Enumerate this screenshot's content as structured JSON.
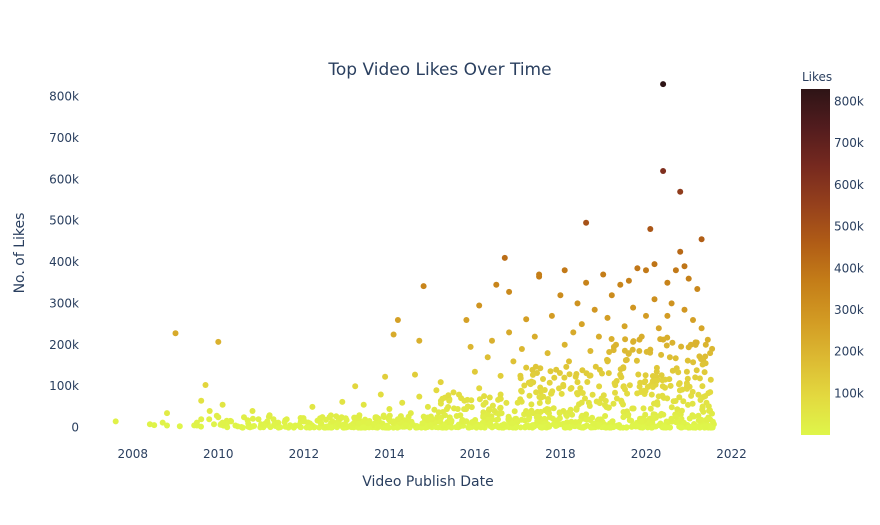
{
  "chart_data": {
    "type": "scatter",
    "title": "Top Video Likes Over Time",
    "xlabel": "Video Publish Date",
    "ylabel": "No. of Likes",
    "xlim": [
      2007.0,
      2022.9
    ],
    "ylim": [
      -30000,
      840000
    ],
    "x_ticks": [
      2008,
      2010,
      2012,
      2014,
      2016,
      2018,
      2020,
      2022
    ],
    "x_tick_labels": [
      "2008",
      "2010",
      "2012",
      "2014",
      "2016",
      "2018",
      "2020",
      "2022"
    ],
    "y_ticks": [
      0,
      100000,
      200000,
      300000,
      400000,
      500000,
      600000,
      700000,
      800000
    ],
    "y_tick_labels": [
      "0",
      "100k",
      "200k",
      "300k",
      "400k",
      "500k",
      "600k",
      "700k",
      "800k"
    ],
    "grid": false,
    "colorbar": {
      "title": "Likes",
      "min": 0,
      "max": 830000,
      "ticks": [
        100000,
        200000,
        300000,
        400000,
        500000,
        600000,
        700000,
        800000
      ],
      "tick_labels": [
        "100k",
        "200k",
        "300k",
        "400k",
        "500k",
        "600k",
        "700k",
        "800k"
      ],
      "colors": [
        "#dff64a",
        "#e3d93f",
        "#dcb932",
        "#d29a23",
        "#c47d18",
        "#b05c16",
        "#95401c",
        "#76291f",
        "#521c1e",
        "#2e1416"
      ]
    },
    "points": [
      [
        2007.6,
        15000
      ],
      [
        2008.4,
        8000
      ],
      [
        2008.5,
        6000
      ],
      [
        2008.7,
        12000
      ],
      [
        2008.8,
        35000
      ],
      [
        2008.8,
        5000
      ],
      [
        2009.1,
        3000
      ],
      [
        2009.0,
        228000
      ],
      [
        2009.5,
        5000
      ],
      [
        2009.5,
        12000
      ],
      [
        2009.6,
        20000
      ],
      [
        2009.6,
        65000
      ],
      [
        2009.7,
        103000
      ],
      [
        2009.8,
        40000
      ],
      [
        2009.9,
        8000
      ],
      [
        2010.0,
        207000
      ],
      [
        2010.0,
        25000
      ],
      [
        2010.1,
        12000
      ],
      [
        2010.1,
        55000
      ],
      [
        2010.3,
        15000
      ],
      [
        2010.4,
        5000
      ],
      [
        2010.6,
        25000
      ],
      [
        2010.7,
        10000
      ],
      [
        2010.8,
        40000
      ],
      [
        2011.0,
        8000
      ],
      [
        2011.2,
        30000
      ],
      [
        2011.4,
        12000
      ],
      [
        2011.6,
        20000
      ],
      [
        2011.8,
        5000
      ],
      [
        2012.0,
        15000
      ],
      [
        2012.2,
        50000
      ],
      [
        2012.4,
        10000
      ],
      [
        2012.6,
        25000
      ],
      [
        2012.8,
        8000
      ],
      [
        2012.9,
        62000
      ],
      [
        2013.0,
        18000
      ],
      [
        2013.2,
        100000
      ],
      [
        2013.3,
        30000
      ],
      [
        2013.4,
        55000
      ],
      [
        2013.5,
        10000
      ],
      [
        2013.7,
        25000
      ],
      [
        2013.8,
        80000
      ],
      [
        2013.9,
        123000
      ],
      [
        2014.0,
        45000
      ],
      [
        2014.1,
        15000
      ],
      [
        2014.1,
        225000
      ],
      [
        2014.2,
        260000
      ],
      [
        2014.2,
        20000
      ],
      [
        2014.3,
        60000
      ],
      [
        2014.5,
        35000
      ],
      [
        2014.6,
        128000
      ],
      [
        2014.7,
        75000
      ],
      [
        2014.7,
        210000
      ],
      [
        2014.8,
        342000
      ],
      [
        2014.9,
        50000
      ],
      [
        2015.0,
        20000
      ],
      [
        2015.1,
        90000
      ],
      [
        2015.2,
        110000
      ],
      [
        2015.3,
        30000
      ],
      [
        2015.4,
        65000
      ],
      [
        2015.5,
        85000
      ],
      [
        2015.6,
        45000
      ],
      [
        2015.7,
        15000
      ],
      [
        2015.8,
        260000
      ],
      [
        2015.9,
        195000
      ],
      [
        2016.0,
        135000
      ],
      [
        2016.1,
        95000
      ],
      [
        2016.1,
        295000
      ],
      [
        2016.2,
        55000
      ],
      [
        2016.3,
        170000
      ],
      [
        2016.4,
        210000
      ],
      [
        2016.5,
        345000
      ],
      [
        2016.6,
        125000
      ],
      [
        2016.6,
        80000
      ],
      [
        2016.7,
        410000
      ],
      [
        2016.8,
        230000
      ],
      [
        2016.8,
        328000
      ],
      [
        2016.9,
        160000
      ],
      [
        2017.0,
        60000
      ],
      [
        2017.1,
        190000
      ],
      [
        2017.2,
        145000
      ],
      [
        2017.2,
        262000
      ],
      [
        2017.3,
        105000
      ],
      [
        2017.4,
        220000
      ],
      [
        2017.5,
        370000
      ],
      [
        2017.5,
        365000
      ],
      [
        2017.6,
        75000
      ],
      [
        2017.7,
        180000
      ],
      [
        2017.8,
        270000
      ],
      [
        2017.9,
        140000
      ],
      [
        2018.0,
        320000
      ],
      [
        2018.1,
        200000
      ],
      [
        2018.1,
        380000
      ],
      [
        2018.2,
        160000
      ],
      [
        2018.3,
        230000
      ],
      [
        2018.4,
        300000
      ],
      [
        2018.4,
        110000
      ],
      [
        2018.5,
        250000
      ],
      [
        2018.6,
        350000
      ],
      [
        2018.6,
        495000
      ],
      [
        2018.7,
        185000
      ],
      [
        2018.8,
        285000
      ],
      [
        2018.9,
        220000
      ],
      [
        2019.0,
        370000
      ],
      [
        2019.1,
        160000
      ],
      [
        2019.1,
        265000
      ],
      [
        2019.2,
        320000
      ],
      [
        2019.3,
        200000
      ],
      [
        2019.4,
        345000
      ],
      [
        2019.5,
        245000
      ],
      [
        2019.6,
        180000
      ],
      [
        2019.6,
        355000
      ],
      [
        2019.7,
        290000
      ],
      [
        2019.8,
        385000
      ],
      [
        2019.9,
        220000
      ],
      [
        2020.0,
        380000
      ],
      [
        2020.0,
        270000
      ],
      [
        2020.1,
        480000
      ],
      [
        2020.2,
        310000
      ],
      [
        2020.2,
        395000
      ],
      [
        2020.3,
        240000
      ],
      [
        2020.4,
        830000
      ],
      [
        2020.4,
        620000
      ],
      [
        2020.5,
        350000
      ],
      [
        2020.5,
        270000
      ],
      [
        2020.6,
        300000
      ],
      [
        2020.7,
        380000
      ],
      [
        2020.8,
        425000
      ],
      [
        2020.8,
        570000
      ],
      [
        2020.9,
        390000
      ],
      [
        2020.9,
        285000
      ],
      [
        2021.0,
        360000
      ],
      [
        2021.1,
        260000
      ],
      [
        2021.2,
        335000
      ],
      [
        2021.3,
        455000
      ],
      [
        2021.3,
        240000
      ],
      [
        2021.4,
        200000
      ],
      [
        2021.5,
        180000
      ]
    ]
  }
}
